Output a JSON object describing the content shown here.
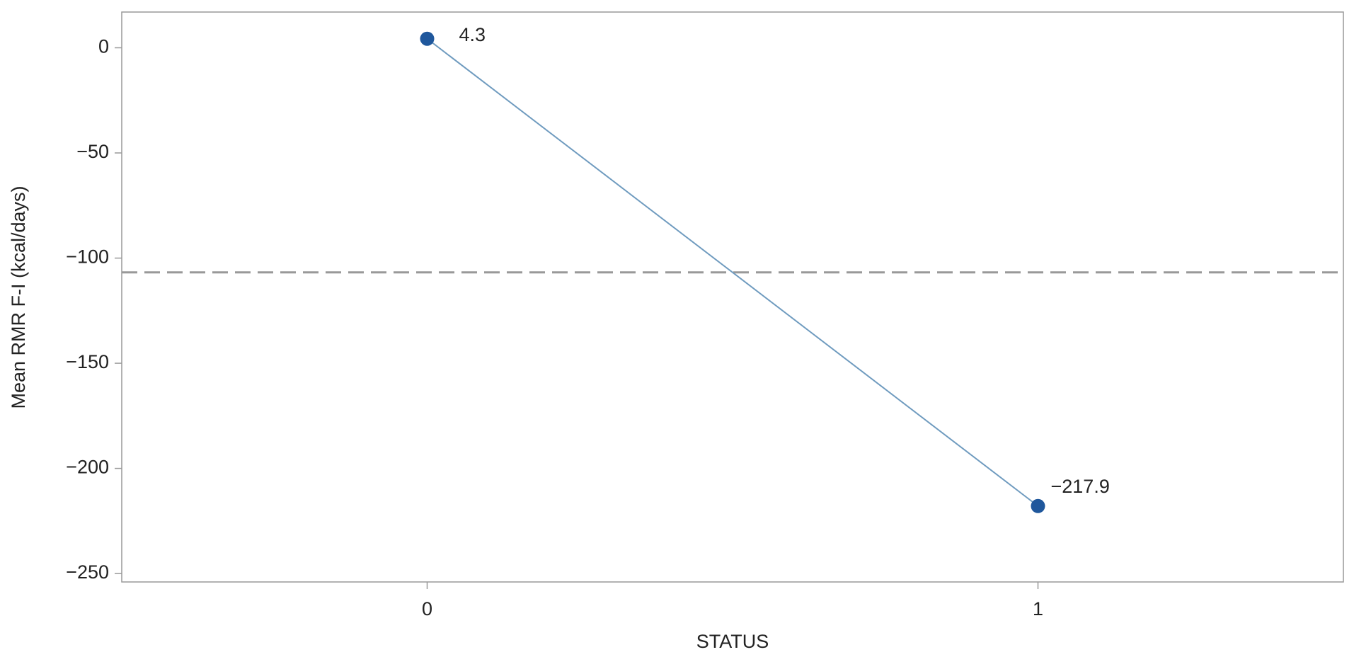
{
  "chart_data": {
    "type": "line",
    "x_label": "STATUS",
    "y_label": "Mean RMR F-I (kcal/days)",
    "x": [
      0,
      1
    ],
    "values": [
      4.3,
      -217.9
    ],
    "value_labels": [
      "4.3",
      "−217.9"
    ],
    "line_color": "#6f9bbf",
    "marker_color": "#1f579c",
    "ref_line": -106.8,
    "ref_color": "#999999",
    "xlim": [
      -0.5,
      1.5
    ],
    "xticks": [
      0,
      1
    ],
    "ylim": [
      -254,
      17
    ],
    "yticks": [
      0,
      {
        "value": -50,
        "label": "−50"
      },
      {
        "value": -100,
        "label": "−100"
      },
      {
        "value": -150,
        "label": "−150"
      },
      {
        "value": -200,
        "label": "−200"
      },
      {
        "value": -250,
        "label": "−250"
      }
    ]
  }
}
